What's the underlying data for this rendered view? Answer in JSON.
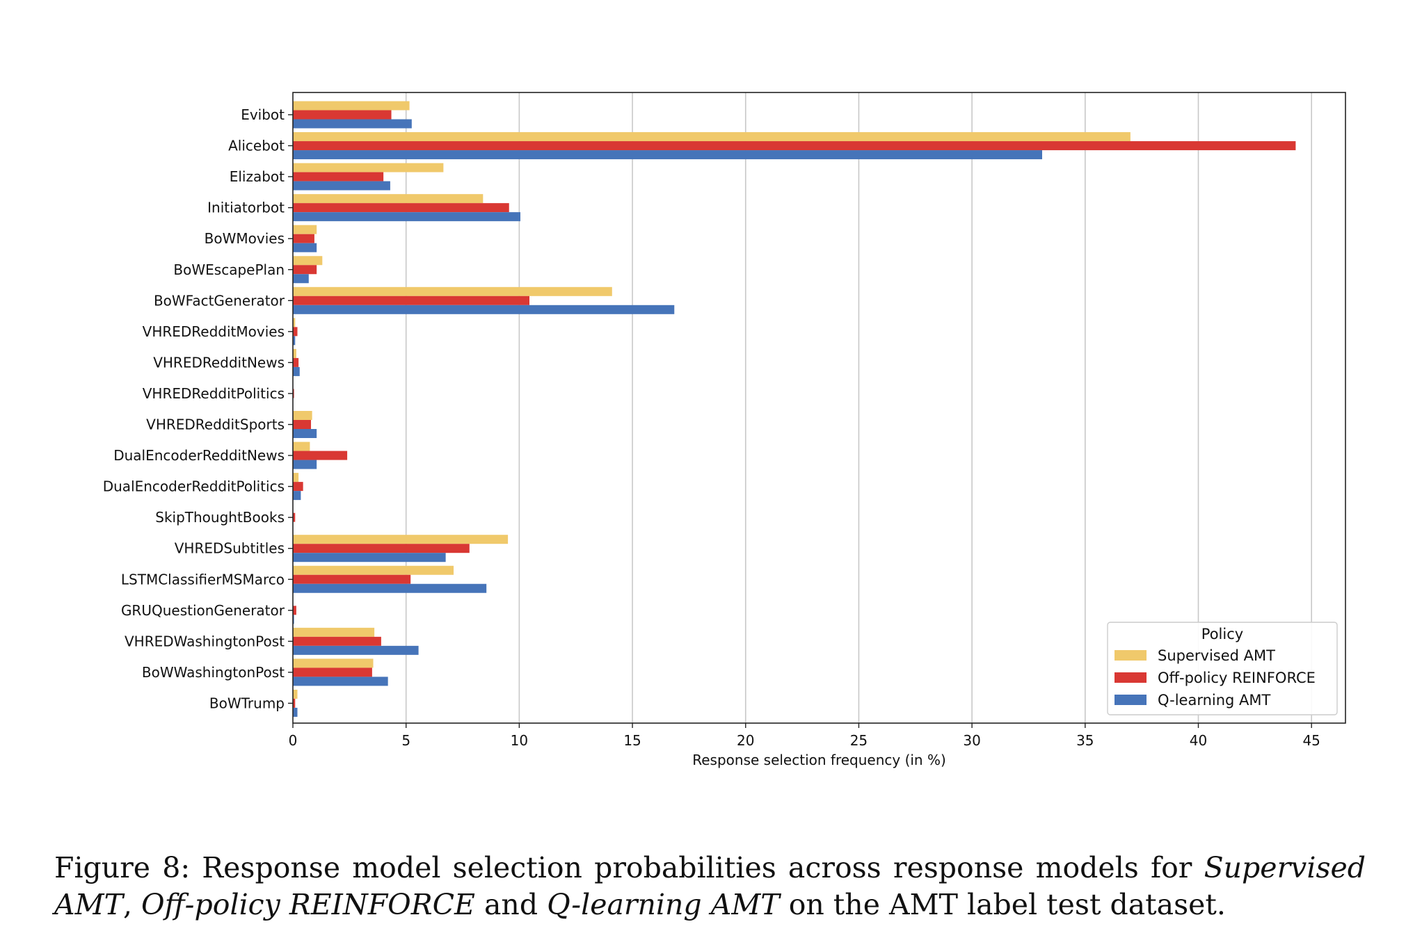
{
  "colors": {
    "supervised": "#f0c96b",
    "offpolicy": "#d93833",
    "qlearning": "#4674b9",
    "grid": "#c8c8c8",
    "axis": "#222222",
    "legend_border": "#cccccc"
  },
  "chart_data": {
    "type": "bar",
    "orientation": "horizontal",
    "categories": [
      "Evibot",
      "Alicebot",
      "Elizabot",
      "Initiatorbot",
      "BoWMovies",
      "BoWEscapePlan",
      "BoWFactGenerator",
      "VHREDRedditMovies",
      "VHREDRedditNews",
      "VHREDRedditPolitics",
      "VHREDRedditSports",
      "DualEncoderRedditNews",
      "DualEncoderRedditPolitics",
      "SkipThoughtBooks",
      "VHREDSubtitles",
      "LSTMClassifierMSMarco",
      "GRUQuestionGenerator",
      "VHREDWashingtonPost",
      "BoWWashingtonPost",
      "BoWTrump"
    ],
    "series": [
      {
        "name": "Supervised AMT",
        "color_key": "supervised",
        "values": [
          5.15,
          37.0,
          6.65,
          8.4,
          1.05,
          1.3,
          14.1,
          0.1,
          0.15,
          0.0,
          0.85,
          0.75,
          0.25,
          0.0,
          9.5,
          7.1,
          0.0,
          3.6,
          3.55,
          0.2
        ]
      },
      {
        "name": "Off-policy REINFORCE",
        "color_key": "offpolicy",
        "values": [
          4.35,
          44.3,
          4.0,
          9.55,
          0.95,
          1.05,
          10.45,
          0.2,
          0.25,
          0.05,
          0.8,
          2.4,
          0.45,
          0.1,
          7.8,
          5.2,
          0.15,
          3.9,
          3.5,
          0.1
        ]
      },
      {
        "name": "Q-learning AMT",
        "color_key": "qlearning",
        "values": [
          5.25,
          33.1,
          4.3,
          10.05,
          1.05,
          0.7,
          16.85,
          0.1,
          0.3,
          0.0,
          1.05,
          1.05,
          0.35,
          0.0,
          6.75,
          8.55,
          0.05,
          5.55,
          4.2,
          0.2
        ]
      }
    ],
    "xlabel": "Response selection frequency (in %)",
    "ylabel": "",
    "xlim": [
      0,
      46.5
    ],
    "xticks": [
      0,
      5,
      10,
      15,
      20,
      25,
      30,
      35,
      40,
      45
    ],
    "grid": "x",
    "legend": {
      "title": "Policy",
      "placement": "bottom-right"
    }
  },
  "caption": {
    "prefix": "Figure 8:  Response model selection probabilities across response models for ",
    "em1": "Supervised AMT",
    "mid1": ", ",
    "em2": "Off-policy REINFORCE",
    "mid2": " and ",
    "em3": "Q-learning AMT",
    "suffix": " on the AMT label test dataset."
  }
}
